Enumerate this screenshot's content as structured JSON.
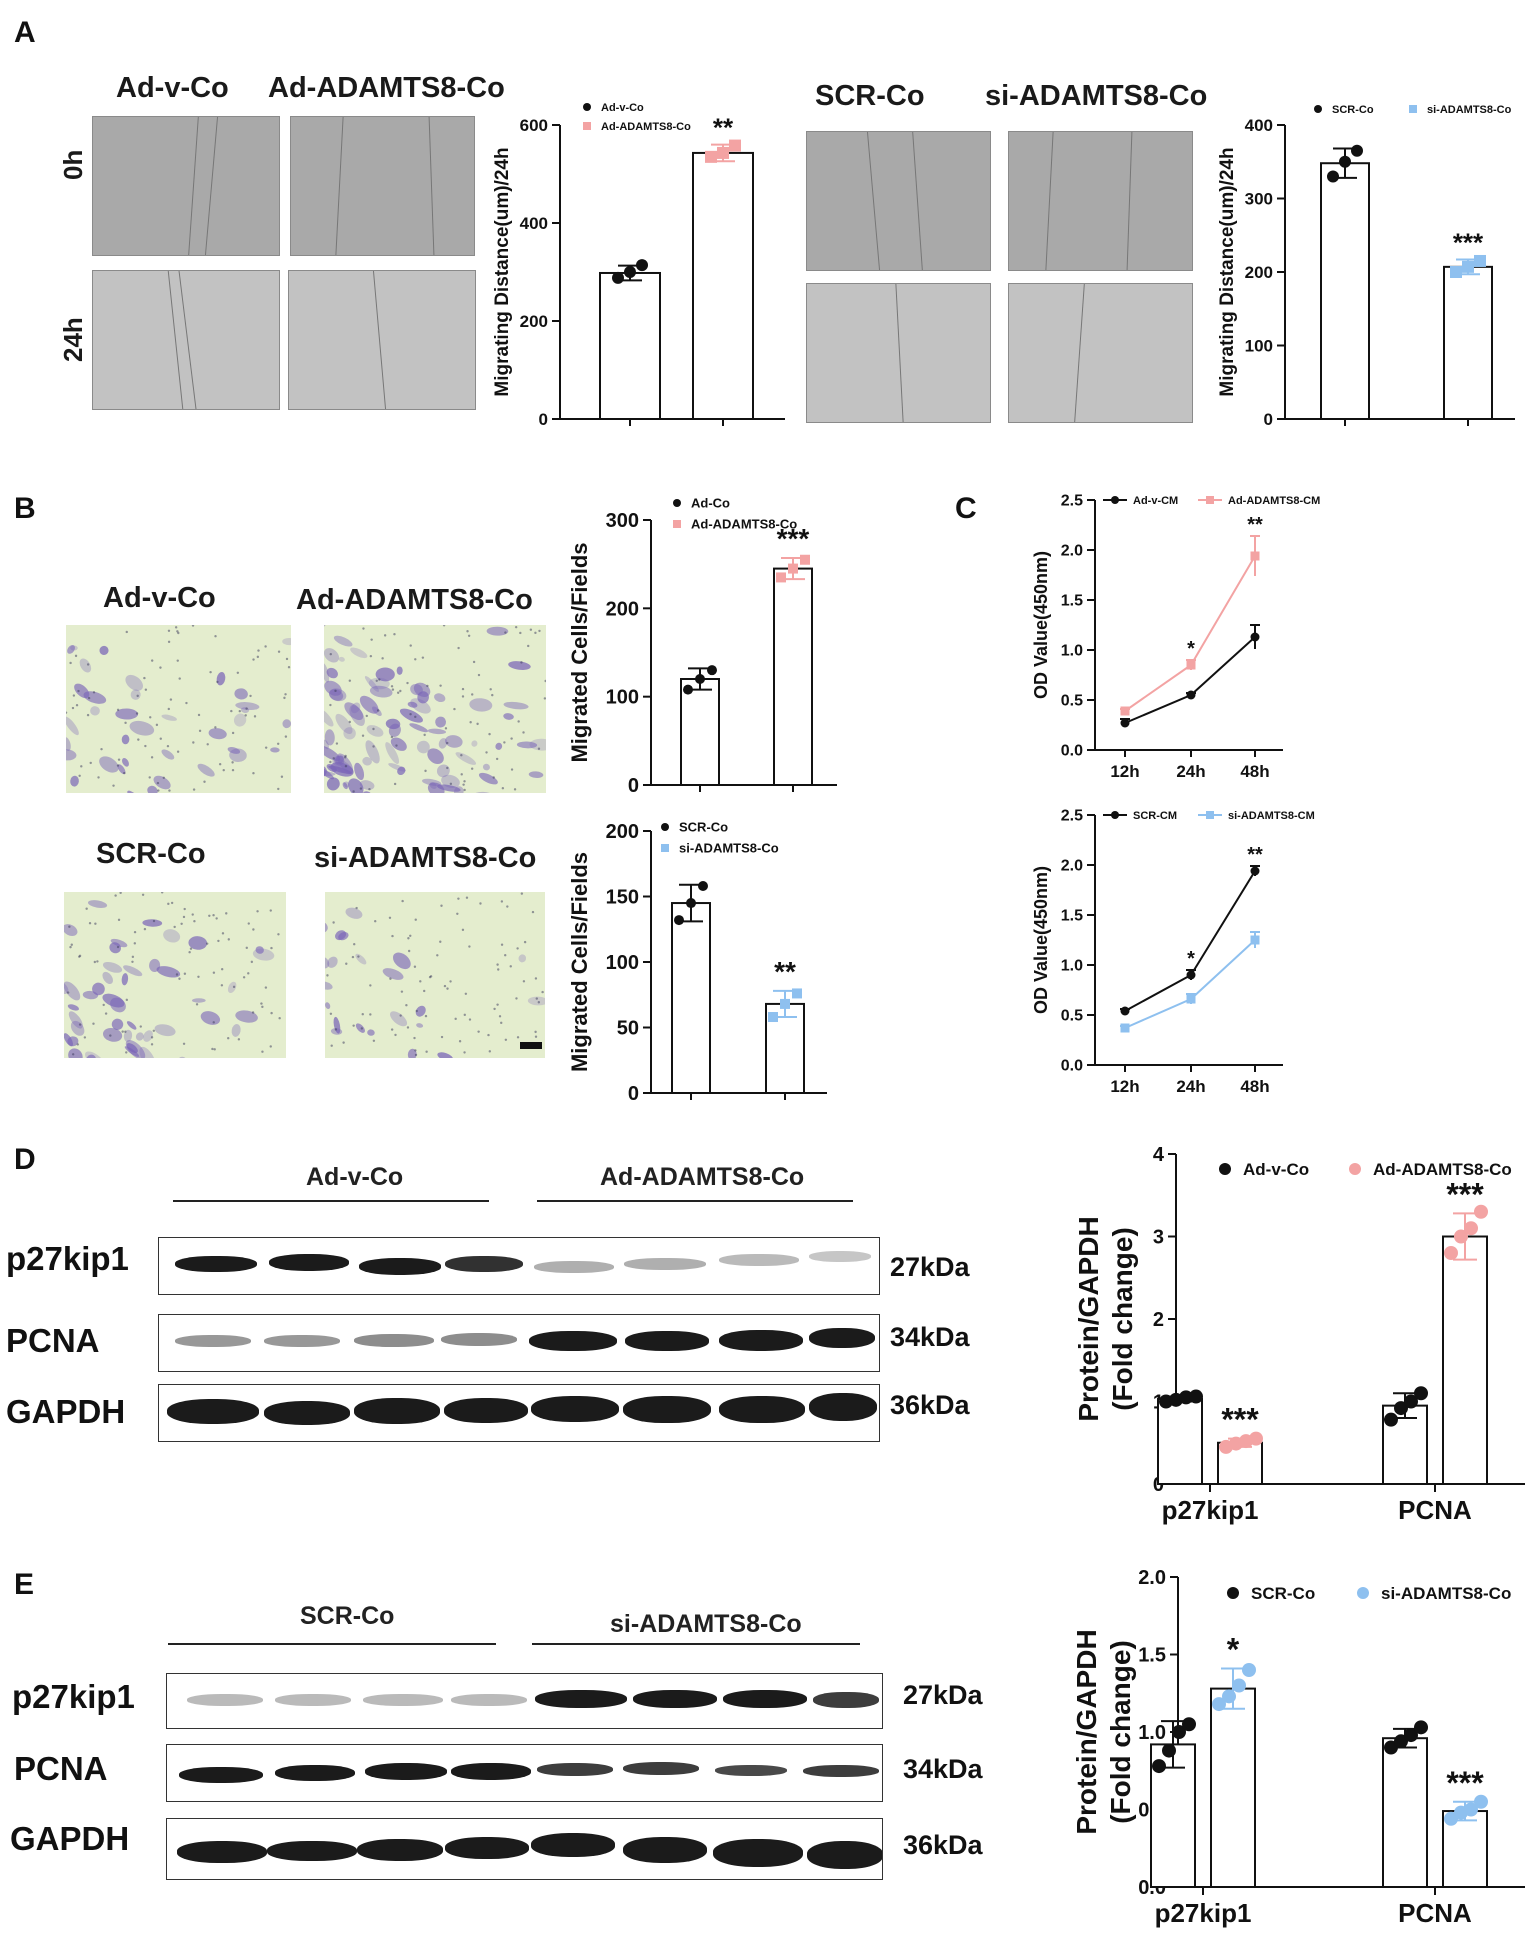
{
  "panel_labels": {
    "A": "A",
    "B": "B",
    "C": "C",
    "D": "D",
    "E": "E"
  },
  "panel_a": {
    "left_images": {
      "col1": "Ad-v-Co",
      "col2": "Ad-ADAMTS8-Co",
      "row1": "0h",
      "row2": "24h"
    },
    "right_images": {
      "col1": "SCR-Co",
      "col2": "si-ADAMTS8-Co"
    }
  },
  "panel_b": {
    "images": {
      "a": "Ad-v-Co",
      "b": "Ad-ADAMTS8-Co",
      "c": "SCR-Co",
      "d": "si-ADAMTS8-Co"
    }
  },
  "panel_d": {
    "group1": "Ad-v-Co",
    "group2": "Ad-ADAMTS8-Co",
    "proteins": [
      "p27kip1",
      "PCNA",
      "GAPDH"
    ],
    "kda": [
      "27kDa",
      "34kDa",
      "36kDa"
    ]
  },
  "panel_e": {
    "group1": "SCR-Co",
    "group2": "si-ADAMTS8-Co",
    "proteins": [
      "p27kip1",
      "PCNA",
      "GAPDH"
    ],
    "kda": [
      "27kDa",
      "34kDa",
      "36kDa"
    ]
  },
  "colors": {
    "black": "#111111",
    "pink": "#f3a3a3",
    "blue": "#8ec0ef",
    "purple": "#7b66b8"
  },
  "chart_data": [
    {
      "id": "a1",
      "type": "bar",
      "ylabel": "Migrating Distance(um)/24h",
      "ylim": [
        0,
        600
      ],
      "yticks": [
        0,
        200,
        400,
        600
      ],
      "series": [
        {
          "name": "Ad-v-Co",
          "value": 298,
          "err": 15,
          "points": [
            288,
            300,
            314
          ],
          "color": "#111111"
        },
        {
          "name": "Ad-ADAMTS8-Co",
          "value": 543,
          "err": 17,
          "points": [
            535,
            543,
            558
          ],
          "color": "#f3a3a3"
        }
      ],
      "annotations": [
        {
          "series": 1,
          "text": "**"
        }
      ]
    },
    {
      "id": "a2",
      "type": "bar",
      "ylabel": "Migrating Distance(um)/24h",
      "ylim": [
        0,
        400
      ],
      "yticks": [
        0,
        100,
        200,
        300,
        400
      ],
      "series": [
        {
          "name": "SCR-Co",
          "value": 348,
          "err": 20,
          "points": [
            330,
            350,
            365
          ],
          "color": "#111111"
        },
        {
          "name": "si-ADAMTS8-Co",
          "value": 207,
          "err": 10,
          "points": [
            200,
            207,
            215
          ],
          "color": "#8ec0ef"
        }
      ],
      "annotations": [
        {
          "series": 1,
          "text": "***"
        }
      ]
    },
    {
      "id": "b1",
      "type": "bar",
      "ylabel": "Migrated Cells/Fields",
      "ylim": [
        0,
        300
      ],
      "yticks": [
        0,
        100,
        200,
        300
      ],
      "series": [
        {
          "name": "Ad-Co",
          "value": 120,
          "err": 12,
          "points": [
            108,
            120,
            130
          ],
          "color": "#111111"
        },
        {
          "name": "Ad-ADAMTS8-Co",
          "value": 245,
          "err": 12,
          "points": [
            235,
            245,
            255
          ],
          "color": "#f3a3a3"
        }
      ],
      "annotations": [
        {
          "series": 1,
          "text": "***"
        }
      ]
    },
    {
      "id": "b2",
      "type": "bar",
      "ylabel": "Migrated Cells/Fields",
      "ylim": [
        0,
        200
      ],
      "yticks": [
        0,
        50,
        100,
        150,
        200
      ],
      "series": [
        {
          "name": "SCR-Co",
          "value": 145,
          "err": 14,
          "points": [
            132,
            145,
            158
          ],
          "color": "#111111"
        },
        {
          "name": "si-ADAMTS8-Co",
          "value": 68,
          "err": 10,
          "points": [
            58,
            68,
            76
          ],
          "color": "#8ec0ef"
        }
      ],
      "annotations": [
        {
          "series": 1,
          "text": "**"
        }
      ]
    },
    {
      "id": "c1",
      "type": "line",
      "ylabel": "OD Value(450nm)",
      "ylim": [
        0,
        2.5
      ],
      "yticks": [
        "0.0",
        "0.5",
        "1.0",
        "1.5",
        "2.0",
        "2.5"
      ],
      "x": [
        "12h",
        "24h",
        "48h"
      ],
      "series": [
        {
          "name": "Ad-v-CM",
          "values": [
            0.27,
            0.55,
            1.13
          ],
          "err": [
            0.04,
            0.02,
            0.12
          ],
          "color": "#111111",
          "marker": "circle"
        },
        {
          "name": "Ad-ADAMTS8-CM",
          "values": [
            0.39,
            0.85,
            1.94
          ],
          "err": [
            0.02,
            0.05,
            0.2
          ],
          "color": "#f3a3a3",
          "marker": "square"
        }
      ],
      "annotations": [
        {
          "x": 1,
          "text": "*"
        },
        {
          "x": 2,
          "text": "**"
        }
      ]
    },
    {
      "id": "c2",
      "type": "line",
      "ylabel": "OD Value(450nm)",
      "ylim": [
        0,
        2.5
      ],
      "yticks": [
        "0.0",
        "0.5",
        "1.0",
        "1.5",
        "2.0",
        "2.5"
      ],
      "x": [
        "12h",
        "24h",
        "48h"
      ],
      "series": [
        {
          "name": "SCR-CM",
          "values": [
            0.54,
            0.9,
            1.94
          ],
          "err": [
            0.02,
            0.05,
            0.05
          ],
          "color": "#111111",
          "marker": "circle"
        },
        {
          "name": "si-ADAMTS8-CM",
          "values": [
            0.37,
            0.66,
            1.25
          ],
          "err": [
            0.02,
            0.05,
            0.08
          ],
          "color": "#8ec0ef",
          "marker": "square"
        }
      ],
      "annotations": [
        {
          "x": 1,
          "text": "*"
        },
        {
          "x": 2,
          "text": "**"
        }
      ]
    },
    {
      "id": "d",
      "type": "bar",
      "ylabel": "Protein/GAPDH",
      "ylabel2": "(Fold change)",
      "ylim": [
        0,
        4
      ],
      "yticks": [
        0,
        1,
        2,
        3,
        4
      ],
      "categories": [
        "p27kip1",
        "PCNA"
      ],
      "series": [
        {
          "name": "Ad-v-Co",
          "values": [
            1.03,
            0.95
          ],
          "err": [
            0.03,
            0.15
          ],
          "points": [
            [
              1.0,
              1.02,
              1.05,
              1.06
            ],
            [
              0.78,
              0.92,
              1.0,
              1.1
            ]
          ],
          "color": "#111111"
        },
        {
          "name": "Ad-ADAMTS8-Co",
          "values": [
            0.5,
            3.0
          ],
          "err": [
            0.05,
            0.28
          ],
          "points": [
            [
              0.45,
              0.49,
              0.52,
              0.55
            ],
            [
              2.8,
              3.0,
              3.1,
              3.3
            ]
          ],
          "color": "#f3a3a3"
        }
      ],
      "annotations": [
        {
          "cat": 0,
          "series": 1,
          "text": "***"
        },
        {
          "cat": 1,
          "series": 1,
          "text": "***"
        }
      ]
    },
    {
      "id": "e",
      "type": "bar",
      "ylabel": "Protein/GAPDH",
      "ylabel2": "(Fold change)",
      "ylim": [
        0,
        2.0
      ],
      "yticks": [
        "0.0",
        "0.5",
        "1.0",
        "1.5",
        "2.0"
      ],
      "categories": [
        "p27kip1",
        "PCNA"
      ],
      "series": [
        {
          "name": "SCR-Co",
          "values": [
            0.92,
            0.96
          ],
          "err": [
            0.15,
            0.06
          ],
          "points": [
            [
              0.78,
              0.88,
              1.0,
              1.05
            ],
            [
              0.9,
              0.94,
              0.98,
              1.03
            ]
          ],
          "color": "#111111"
        },
        {
          "name": "si-ADAMTS8-Co",
          "values": [
            1.28,
            0.49
          ],
          "err": [
            0.13,
            0.06
          ],
          "points": [
            [
              1.18,
              1.23,
              1.3,
              1.4
            ],
            [
              0.44,
              0.48,
              0.5,
              0.55
            ]
          ],
          "color": "#8ec0ef"
        }
      ],
      "annotations": [
        {
          "cat": 0,
          "series": 1,
          "text": "*"
        },
        {
          "cat": 1,
          "series": 1,
          "text": "***"
        }
      ]
    }
  ]
}
